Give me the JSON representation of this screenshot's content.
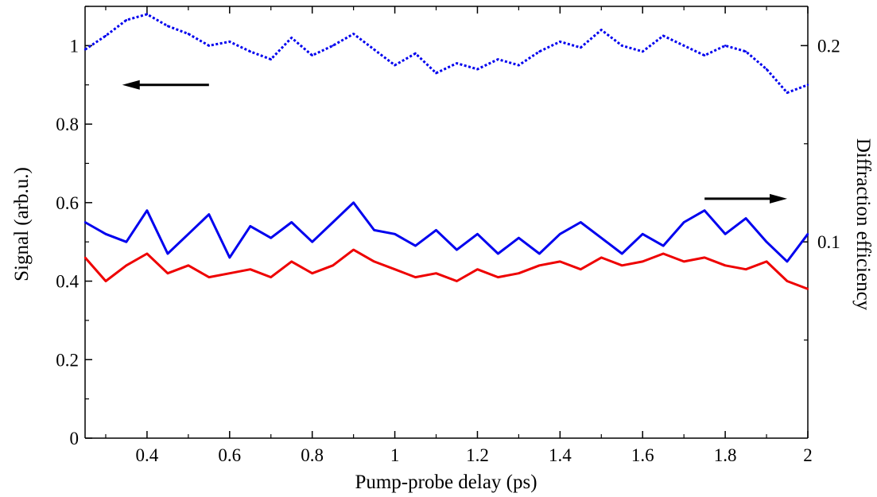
{
  "chart_data": {
    "type": "line",
    "xlabel": "Pump-probe delay (ps)",
    "ylabel": "Signal (arb.u.)",
    "ylabel_right": "Diffraction efficiency",
    "xlim": [
      0.25,
      2.0
    ],
    "ylim": [
      0,
      1.1
    ],
    "ylim_right": [
      0,
      0.22
    ],
    "x_ticks": [
      0.4,
      0.6,
      0.8,
      1,
      1.2,
      1.4,
      1.6,
      1.8,
      2
    ],
    "x_tick_labels": [
      "0.4",
      "0.6",
      "0.8",
      "1",
      "1.2",
      "1.4",
      "1.6",
      "1.8",
      "2"
    ],
    "y_ticks": [
      0,
      0.2,
      0.4,
      0.6,
      0.8,
      1
    ],
    "y_tick_labels": [
      "0",
      "0.2",
      "0.4",
      "0.6",
      "0.8",
      "1"
    ],
    "y_right_ticks": [
      0.1,
      0.2
    ],
    "y_right_tick_labels": [
      "0.1",
      "0.2"
    ],
    "grid": false,
    "colors": {
      "blue_solid": "#0000ee",
      "red_solid": "#ee0000",
      "blue_dotted": "#0000ee",
      "arrow": "#000000"
    },
    "arrows": [
      {
        "direction": "left",
        "axis": "left",
        "x_from": 0.55,
        "x_to": 0.34,
        "y": 0.9
      },
      {
        "direction": "right",
        "axis": "right",
        "x_from": 1.75,
        "x_to": 1.95,
        "y": 0.122
      }
    ],
    "series": [
      {
        "axis": "right",
        "style": "dotted",
        "color": "#0000ee",
        "x": [
          0.25,
          0.3,
          0.35,
          0.4,
          0.45,
          0.5,
          0.55,
          0.6,
          0.65,
          0.7,
          0.75,
          0.8,
          0.85,
          0.9,
          0.95,
          1.0,
          1.05,
          1.1,
          1.15,
          1.2,
          1.25,
          1.3,
          1.35,
          1.4,
          1.45,
          1.5,
          1.55,
          1.6,
          1.65,
          1.7,
          1.75,
          1.8,
          1.85,
          1.9,
          1.95,
          2.0
        ],
        "y": [
          0.198,
          0.205,
          0.213,
          0.216,
          0.21,
          0.206,
          0.2,
          0.202,
          0.197,
          0.193,
          0.204,
          0.195,
          0.2,
          0.206,
          0.198,
          0.19,
          0.196,
          0.186,
          0.191,
          0.188,
          0.193,
          0.19,
          0.197,
          0.202,
          0.199,
          0.208,
          0.2,
          0.197,
          0.205,
          0.2,
          0.195,
          0.2,
          0.197,
          0.188,
          0.176,
          0.18
        ]
      },
      {
        "axis": "left",
        "style": "solid",
        "color": "#0000ee",
        "x": [
          0.25,
          0.3,
          0.35,
          0.4,
          0.45,
          0.5,
          0.55,
          0.6,
          0.65,
          0.7,
          0.75,
          0.8,
          0.85,
          0.9,
          0.95,
          1.0,
          1.05,
          1.1,
          1.15,
          1.2,
          1.25,
          1.3,
          1.35,
          1.4,
          1.45,
          1.5,
          1.55,
          1.6,
          1.65,
          1.7,
          1.75,
          1.8,
          1.85,
          1.9,
          1.95,
          2.0
        ],
        "y": [
          0.55,
          0.52,
          0.5,
          0.58,
          0.47,
          0.52,
          0.57,
          0.46,
          0.54,
          0.51,
          0.55,
          0.5,
          0.55,
          0.6,
          0.53,
          0.52,
          0.49,
          0.53,
          0.48,
          0.52,
          0.47,
          0.51,
          0.47,
          0.52,
          0.55,
          0.51,
          0.47,
          0.52,
          0.49,
          0.55,
          0.58,
          0.52,
          0.56,
          0.5,
          0.45,
          0.52
        ]
      },
      {
        "axis": "left",
        "style": "solid",
        "color": "#ee0000",
        "x": [
          0.25,
          0.3,
          0.35,
          0.4,
          0.45,
          0.5,
          0.55,
          0.6,
          0.65,
          0.7,
          0.75,
          0.8,
          0.85,
          0.9,
          0.95,
          1.0,
          1.05,
          1.1,
          1.15,
          1.2,
          1.25,
          1.3,
          1.35,
          1.4,
          1.45,
          1.5,
          1.55,
          1.6,
          1.65,
          1.7,
          1.75,
          1.8,
          1.85,
          1.9,
          1.95,
          2.0
        ],
        "y": [
          0.46,
          0.4,
          0.44,
          0.47,
          0.42,
          0.44,
          0.41,
          0.42,
          0.43,
          0.41,
          0.45,
          0.42,
          0.44,
          0.48,
          0.45,
          0.43,
          0.41,
          0.42,
          0.4,
          0.43,
          0.41,
          0.42,
          0.44,
          0.45,
          0.43,
          0.46,
          0.44,
          0.45,
          0.47,
          0.45,
          0.46,
          0.44,
          0.43,
          0.45,
          0.4,
          0.38
        ]
      }
    ]
  }
}
